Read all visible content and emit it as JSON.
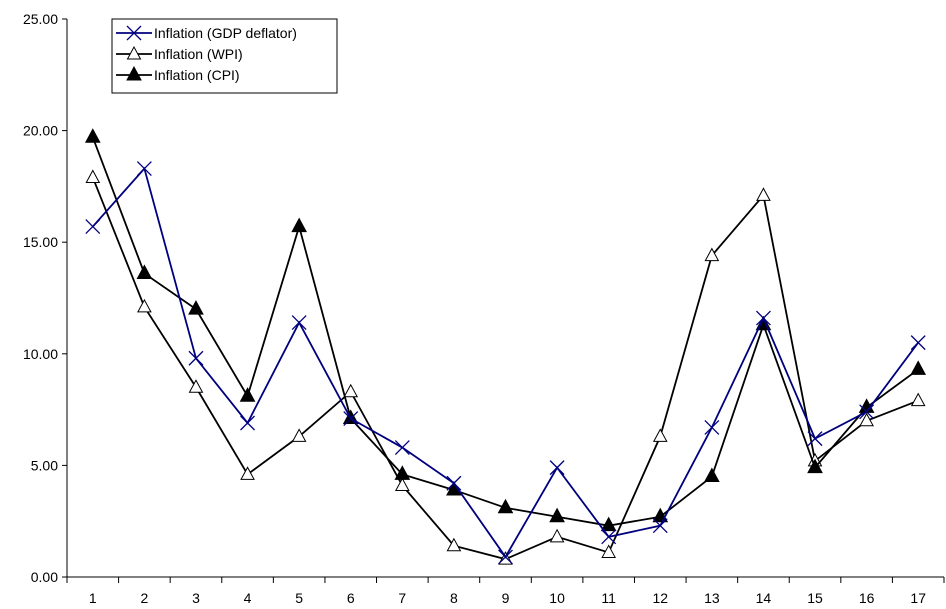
{
  "chart_data": {
    "type": "line",
    "title": "",
    "xlabel": "",
    "ylabel": "",
    "categories": [
      "1",
      "2",
      "3",
      "4",
      "5",
      "6",
      "7",
      "8",
      "9",
      "10",
      "11",
      "12",
      "13",
      "14",
      "15",
      "16",
      "17"
    ],
    "ylim": [
      0,
      25
    ],
    "yticks": [
      "0.00",
      "5.00",
      "10.00",
      "15.00",
      "20.00",
      "25.00"
    ],
    "grid": false,
    "legend_position": "top-left",
    "series": [
      {
        "name": "Inflation (GDP deflator)",
        "color": "#00007f",
        "marker": "x",
        "values": [
          15.7,
          18.3,
          9.8,
          6.9,
          11.4,
          7.1,
          5.8,
          4.2,
          0.9,
          4.9,
          1.8,
          2.3,
          6.7,
          11.6,
          6.2,
          7.4,
          10.5
        ]
      },
      {
        "name": "Inflation (WPI)",
        "color": "#000000",
        "marker": "open-triangle",
        "values": [
          17.9,
          12.1,
          8.5,
          4.6,
          6.3,
          8.3,
          4.1,
          1.4,
          0.8,
          1.8,
          1.1,
          6.3,
          14.4,
          17.1,
          5.2,
          7.0,
          7.9
        ]
      },
      {
        "name": "Inflation (CPI)",
        "color": "#000000",
        "marker": "filled-triangle",
        "values": [
          19.7,
          13.6,
          12.0,
          8.1,
          15.7,
          7.1,
          4.6,
          3.9,
          3.1,
          2.7,
          2.3,
          2.7,
          4.5,
          11.3,
          4.9,
          7.6,
          9.3
        ]
      }
    ]
  }
}
